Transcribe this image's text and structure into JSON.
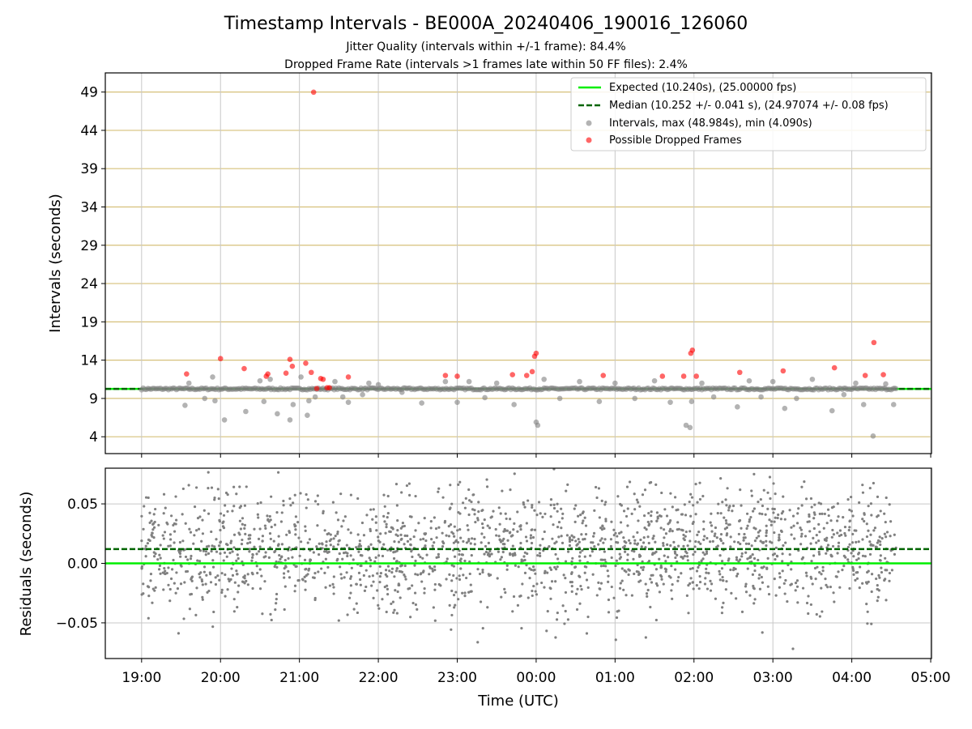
{
  "title": "Timestamp Intervals - BE000A_20240406_190016_126060",
  "subtitle_1": "Jitter Quality (intervals within +/-1 frame): 84.4%",
  "subtitle_2": "Dropped Frame Rate (intervals >1 frames late within 50 FF files): 2.4%",
  "colors": {
    "expected": "#00ee00",
    "median": "#006400",
    "intervals": "#808080",
    "dropped": "#ff0000",
    "hgrid": "#d6c07a",
    "vgrid": "#c8c8c8"
  },
  "chart_data": [
    {
      "type": "scatter",
      "panel": "top",
      "ylabel": "Intervals (seconds)",
      "ylim": [
        1.8,
        51.5
      ],
      "yticks": [
        4,
        9,
        14,
        19,
        24,
        29,
        34,
        39,
        44,
        49
      ],
      "ytick_labels": [
        "4",
        "9",
        "14",
        "19",
        "24",
        "29",
        "34",
        "39",
        "44",
        "49"
      ],
      "x_range_hours": [
        18.54,
        29.01
      ],
      "grid": true,
      "legend_placement": "upper right",
      "legend": [
        "Expected (10.240s), (25.00000 fps)",
        "Median (10.252 +/- 0.041 s), (24.97074 +/- 0.08 fps)",
        "Intervals, max (48.984s), min (4.090s)",
        "Possible Dropped Frames"
      ],
      "series": [
        {
          "name": "Expected (10.240s), (25.00000 fps)",
          "kind": "hline",
          "y": 10.24
        },
        {
          "name": "Median (10.252 +/- 0.041 s), (24.97074 +/- 0.08 fps)",
          "kind": "hline-dashed",
          "y": 10.252
        },
        {
          "name": "Intervals, max (48.984s), min (4.090s)",
          "kind": "points",
          "x_hours": [
            19.55,
            19.6,
            19.8,
            19.9,
            19.93,
            20.05,
            20.32,
            20.5,
            20.55,
            20.63,
            20.72,
            20.88,
            20.92,
            21.02,
            21.1,
            21.12,
            21.2,
            21.45,
            21.55,
            21.62,
            21.8,
            21.88,
            22.0,
            22.3,
            22.55,
            22.85,
            23.0,
            23.15,
            23.35,
            23.5,
            23.72,
            24.0,
            24.02,
            24.1,
            24.3,
            24.55,
            24.8,
            25.0,
            25.25,
            25.5,
            25.7,
            25.9,
            25.95,
            25.97,
            26.1,
            26.25,
            26.55,
            26.7,
            26.85,
            27.0,
            27.15,
            27.3,
            27.5,
            27.75,
            27.9,
            28.05,
            28.15,
            28.27,
            28.43,
            28.53
          ],
          "y": [
            8.1,
            11.0,
            9.0,
            11.8,
            8.7,
            6.2,
            7.3,
            11.3,
            8.6,
            11.5,
            7.0,
            6.2,
            8.2,
            11.8,
            6.8,
            8.7,
            9.2,
            11.2,
            9.2,
            8.5,
            9.5,
            11.0,
            10.8,
            9.8,
            8.4,
            11.2,
            8.5,
            11.2,
            9.1,
            11.0,
            8.2,
            5.9,
            5.5,
            11.5,
            9.0,
            11.2,
            8.6,
            11.0,
            9.0,
            11.3,
            8.5,
            5.5,
            5.2,
            8.6,
            11.0,
            9.2,
            7.9,
            11.3,
            9.2,
            11.2,
            7.7,
            9.0,
            11.5,
            7.4,
            9.5,
            11.0,
            8.2,
            4.09,
            10.9,
            8.2
          ]
        },
        {
          "name": "Possible Dropped Frames",
          "kind": "points",
          "x_hours": [
            19.57,
            20.0,
            20.3,
            20.58,
            20.6,
            20.83,
            20.88,
            20.91,
            21.08,
            21.15,
            21.18,
            21.22,
            21.27,
            21.3,
            21.35,
            21.38,
            21.62,
            22.85,
            23.0,
            23.7,
            23.88,
            23.95,
            23.98,
            24.0,
            24.85,
            25.6,
            25.87,
            25.96,
            25.98,
            26.03,
            26.58,
            27.13,
            27.78,
            28.17,
            28.28,
            28.4
          ],
          "y": [
            12.2,
            14.2,
            12.9,
            11.9,
            12.2,
            12.3,
            14.1,
            13.2,
            13.6,
            12.4,
            48.98,
            10.3,
            11.6,
            11.5,
            10.4,
            10.4,
            11.8,
            12.0,
            11.9,
            12.1,
            12.0,
            12.5,
            14.5,
            14.9,
            12.0,
            11.9,
            11.9,
            14.9,
            15.3,
            11.9,
            12.4,
            12.6,
            13.0,
            12.0,
            16.3,
            12.1
          ]
        }
      ]
    },
    {
      "type": "scatter",
      "panel": "bottom",
      "xlabel": "Time (UTC)",
      "ylabel": "Residuals (seconds)",
      "ylim": [
        -0.08,
        0.08
      ],
      "yticks": [
        -0.05,
        0.0,
        0.05
      ],
      "ytick_labels": [
        "−0.05",
        "0.00",
        "0.05"
      ],
      "x_range_hours": [
        18.54,
        29.01
      ],
      "xticks_hours": [
        19,
        20,
        21,
        22,
        23,
        24,
        25,
        26,
        27,
        28,
        29
      ],
      "xtick_labels": [
        "19:00",
        "20:00",
        "21:00",
        "22:00",
        "23:00",
        "00:00",
        "01:00",
        "02:00",
        "03:00",
        "04:00",
        "05:00"
      ],
      "grid": true,
      "series": [
        {
          "name": "Expected",
          "kind": "hline",
          "y": 0.0
        },
        {
          "name": "Median",
          "kind": "hline-dashed",
          "y": 0.012
        },
        {
          "name": "Residuals",
          "kind": "points",
          "generated": true,
          "count": 2000,
          "x_range_hours": [
            19.0,
            28.56
          ],
          "y_center": 0.012,
          "y_spread": 0.041
        }
      ]
    }
  ]
}
